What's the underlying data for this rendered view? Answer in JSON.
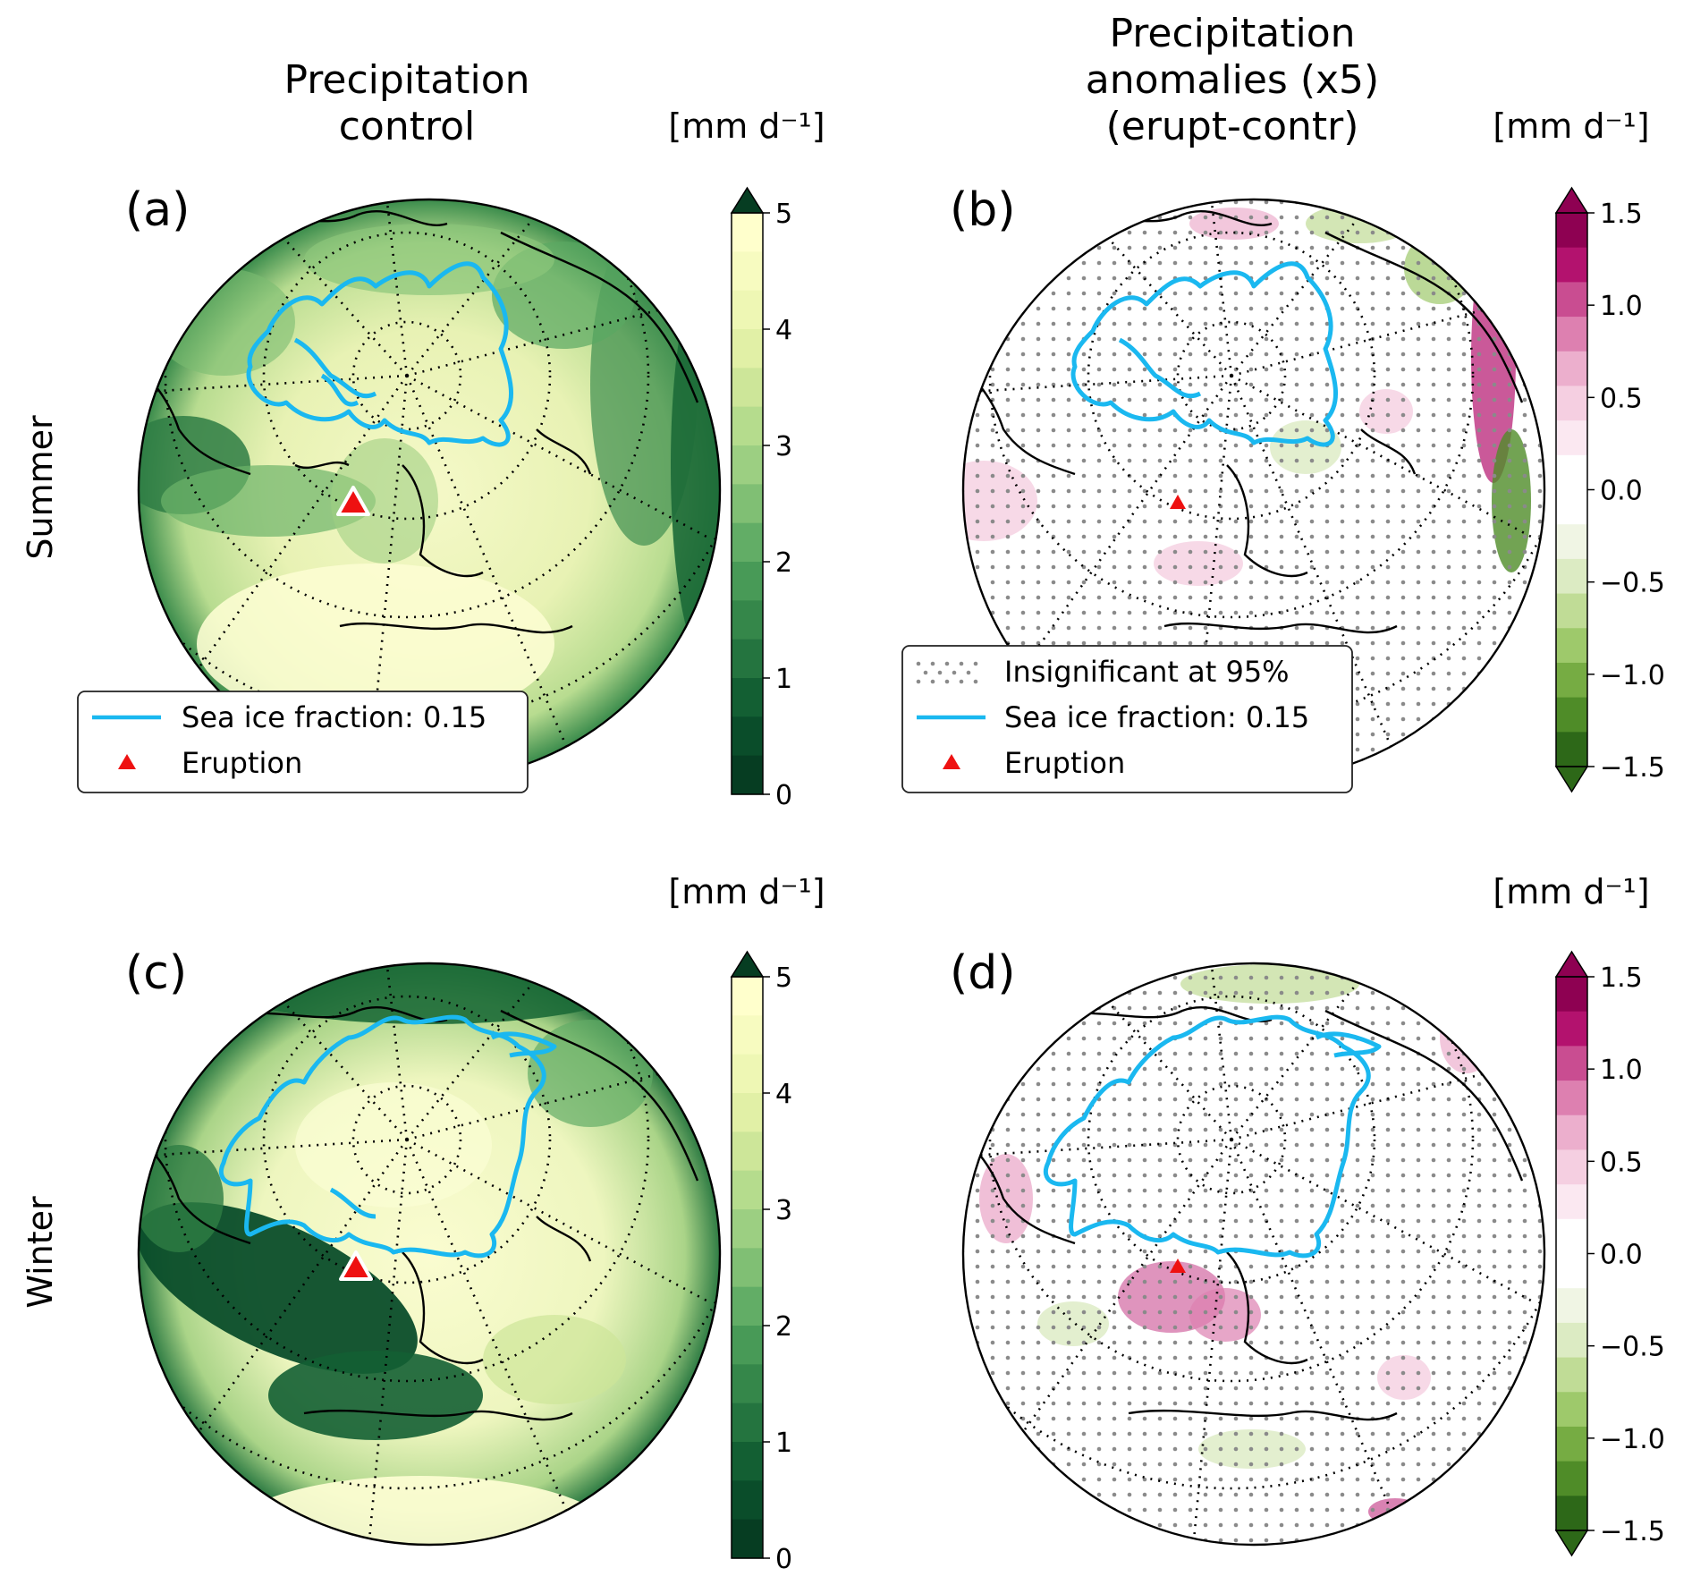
{
  "figure": {
    "columns": [
      {
        "title_line1": "Precipitation",
        "title_line2": "control",
        "title_line3": ""
      },
      {
        "title_line1": "Precipitation",
        "title_line2": "anomalies (x5)",
        "title_line3": "(erupt-contr)"
      }
    ],
    "rows": [
      "Summer",
      "Winter"
    ],
    "units": "[mm d⁻¹]",
    "panels": [
      {
        "label": "(a)",
        "field": "control",
        "season": "Summer"
      },
      {
        "label": "(b)",
        "field": "anomaly",
        "season": "Summer"
      },
      {
        "label": "(c)",
        "field": "control",
        "season": "Winter"
      },
      {
        "label": "(d)",
        "field": "anomaly",
        "season": "Winter"
      }
    ],
    "control_colorbar": {
      "ticks": [
        "0",
        "1",
        "2",
        "3",
        "4",
        "5"
      ],
      "colors": [
        "#ffffcc",
        "#f7fbc0",
        "#eef7b4",
        "#e1f0a6",
        "#cde699",
        "#b5dc8d",
        "#9ccf82",
        "#80bf74",
        "#62ad66",
        "#489a57",
        "#35874a",
        "#24743f",
        "#135f33",
        "#0a4d2a",
        "#063d22"
      ]
    },
    "anomaly_colorbar": {
      "ticks": [
        "1.5",
        "1.0",
        "0.5",
        "0.0",
        "−0.5",
        "−1.0",
        "−1.5"
      ],
      "colors": [
        "#8e0152",
        "#b3126e",
        "#c94d91",
        "#dd80b0",
        "#ecafcd",
        "#f5cfe1",
        "#fbe8f1",
        "#ffffff",
        "#ffffff",
        "#f0f5e4",
        "#dcebc3",
        "#c0dc96",
        "#9ec96b",
        "#76ac43",
        "#4f8c28",
        "#2d6818"
      ]
    },
    "legend_a": {
      "items": [
        "Sea ice fraction: 0.15",
        "Eruption"
      ]
    },
    "legend_b": {
      "items": [
        "Insignificant at 95%",
        "Sea ice fraction: 0.15",
        "Eruption"
      ]
    },
    "colors": {
      "sea_ice": "#1ab8f0",
      "eruption": "#ee1111",
      "coast": "#000000"
    }
  }
}
